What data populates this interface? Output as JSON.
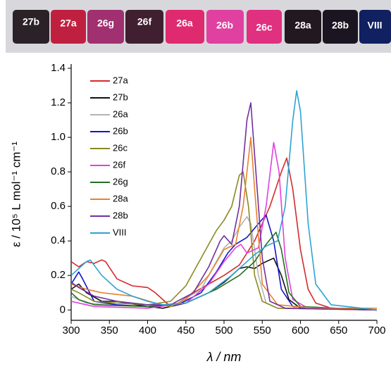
{
  "photo": {
    "labels": [
      "27b",
      "27a",
      "26g",
      "26f",
      "26a",
      "26b",
      "26c",
      "28a",
      "28b",
      "VIII"
    ]
  },
  "chart_data": {
    "type": "line",
    "xlabel": "λ / nm",
    "ylabel": "ε / 10⁵ L mol⁻¹ cm⁻¹",
    "xlim": [
      300,
      700
    ],
    "xticks": [
      300,
      350,
      400,
      450,
      500,
      550,
      600,
      650,
      700
    ],
    "ylim": [
      -0.06,
      1.4
    ],
    "yticks": [
      0,
      0.2,
      0.4,
      0.6,
      0.8,
      {
        "value": 1,
        "label": "1.0"
      },
      1.2,
      1.4
    ],
    "legend": "upper left",
    "series": [
      {
        "name": "27a",
        "color": "#d42a2a",
        "x": [
          300,
          310,
          320,
          330,
          340,
          345,
          360,
          380,
          400,
          410,
          420,
          430,
          440,
          460,
          480,
          500,
          520,
          540,
          560,
          575,
          582,
          590,
          600,
          610,
          620,
          640,
          700
        ],
        "values": [
          0.28,
          0.25,
          0.28,
          0.27,
          0.29,
          0.28,
          0.18,
          0.14,
          0.13,
          0.1,
          0.06,
          0.02,
          0.04,
          0.1,
          0.15,
          0.2,
          0.26,
          0.4,
          0.6,
          0.8,
          0.88,
          0.7,
          0.35,
          0.12,
          0.04,
          0.01,
          0
        ]
      },
      {
        "name": "27b",
        "color": "#111111",
        "x": [
          300,
          310,
          320,
          340,
          360,
          400,
          420,
          450,
          480,
          500,
          520,
          530,
          540,
          550,
          565,
          575,
          585,
          600,
          700
        ],
        "values": [
          0.12,
          0.15,
          0.1,
          0.05,
          0.05,
          0.02,
          0.01,
          0.04,
          0.1,
          0.16,
          0.24,
          0.25,
          0.24,
          0.27,
          0.3,
          0.2,
          0.06,
          0.01,
          0
        ]
      },
      {
        "name": "26a",
        "color": "#b4b4b4",
        "x": [
          300,
          320,
          350,
          400,
          440,
          470,
          490,
          500,
          510,
          520,
          530,
          535,
          545,
          555,
          570,
          700
        ],
        "values": [
          0.08,
          0.04,
          0.03,
          0.02,
          0.04,
          0.12,
          0.28,
          0.36,
          0.4,
          0.48,
          0.54,
          0.5,
          0.2,
          0.04,
          0.01,
          0
        ]
      },
      {
        "name": "26b",
        "color": "#1515c8",
        "x": [
          300,
          310,
          315,
          330,
          360,
          400,
          440,
          470,
          490,
          505,
          515,
          530,
          545,
          555,
          565,
          575,
          590,
          700
        ],
        "values": [
          0.15,
          0.22,
          0.18,
          0.05,
          0.03,
          0.02,
          0.03,
          0.1,
          0.22,
          0.33,
          0.38,
          0.42,
          0.5,
          0.55,
          0.4,
          0.12,
          0.02,
          0
        ]
      },
      {
        "name": "26c",
        "color": "#8a8a22",
        "x": [
          300,
          310,
          330,
          360,
          400,
          430,
          450,
          470,
          490,
          500,
          510,
          520,
          525,
          532,
          540,
          550,
          570,
          700
        ],
        "values": [
          0.12,
          0.1,
          0.05,
          0.04,
          0.03,
          0.05,
          0.14,
          0.3,
          0.46,
          0.52,
          0.6,
          0.78,
          0.8,
          0.6,
          0.2,
          0.05,
          0.01,
          0
        ]
      },
      {
        "name": "26f",
        "color": "#e040e0",
        "x": [
          300,
          330,
          400,
          450,
          480,
          500,
          515,
          522,
          530,
          545,
          555,
          565,
          572,
          580,
          590,
          610,
          700
        ],
        "values": [
          0.05,
          0.02,
          0.01,
          0.04,
          0.15,
          0.28,
          0.36,
          0.38,
          0.33,
          0.36,
          0.6,
          0.97,
          0.8,
          0.3,
          0.06,
          0.01,
          0
        ]
      },
      {
        "name": "26g",
        "color": "#227022",
        "x": [
          300,
          310,
          330,
          400,
          450,
          490,
          520,
          540,
          555,
          568,
          575,
          585,
          600,
          700
        ],
        "values": [
          0.1,
          0.06,
          0.03,
          0.02,
          0.04,
          0.12,
          0.2,
          0.28,
          0.38,
          0.45,
          0.35,
          0.1,
          0.02,
          0
        ]
      },
      {
        "name": "28a",
        "color": "#e8822e",
        "x": [
          300,
          320,
          340,
          380,
          410,
          430,
          450,
          480,
          500,
          515,
          525,
          535,
          540,
          550,
          570,
          620,
          700
        ],
        "values": [
          0.15,
          0.12,
          0.1,
          0.08,
          0.04,
          0.02,
          0.06,
          0.2,
          0.35,
          0.38,
          0.6,
          1,
          0.7,
          0.15,
          0.03,
          0.01,
          0.01
        ]
      },
      {
        "name": "28b",
        "color": "#7030a0",
        "x": [
          300,
          310,
          330,
          360,
          400,
          430,
          460,
          480,
          495,
          500,
          510,
          520,
          530,
          535,
          540,
          550,
          560,
          580,
          700
        ],
        "values": [
          0.16,
          0.13,
          0.08,
          0.05,
          0.03,
          0.03,
          0.1,
          0.25,
          0.4,
          0.43,
          0.38,
          0.6,
          1.1,
          1.2,
          0.9,
          0.3,
          0.05,
          0.01,
          0
        ]
      },
      {
        "name": "VIII",
        "color": "#30a2d2",
        "x": [
          300,
          310,
          320,
          325,
          340,
          360,
          380,
          400,
          420,
          450,
          480,
          510,
          540,
          555,
          570,
          580,
          590,
          595,
          600,
          610,
          620,
          640,
          700
        ],
        "values": [
          0.2,
          0.24,
          0.28,
          0.29,
          0.2,
          0.12,
          0.08,
          0.05,
          0.03,
          0.04,
          0.1,
          0.2,
          0.32,
          0.37,
          0.4,
          0.6,
          1.1,
          1.27,
          1.15,
          0.5,
          0.15,
          0.03,
          0
        ]
      }
    ]
  }
}
